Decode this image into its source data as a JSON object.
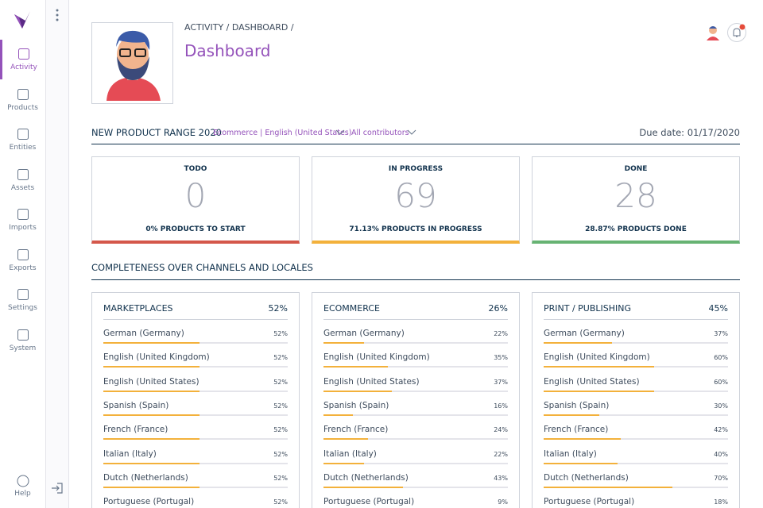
{
  "sidebar": {
    "items": [
      "Activity",
      "Products",
      "Entities",
      "Assets",
      "Imports",
      "Exports",
      "Settings",
      "System"
    ],
    "help": "Help"
  },
  "header": {
    "breadcrumb": "ACTIVITY / DASHBOARD /",
    "title": "Dashboard"
  },
  "project": {
    "name": "NEW PRODUCT RANGE 2020",
    "channel": "Ecommerce | English (United States)",
    "contributors": "All contributors",
    "due_date": "Due date: 01/17/2020"
  },
  "status_cards": [
    {
      "title": "TODO",
      "count": 0,
      "caption": "0% PRODUCTS TO START",
      "color": "#d4574a"
    },
    {
      "title": "IN PROGRESS",
      "count": 69,
      "caption": "71.13% PRODUCTS IN PROGRESS",
      "color": "#f3b13b"
    },
    {
      "title": "DONE",
      "count": 28,
      "caption": "28.87% PRODUCTS DONE",
      "color": "#67b373"
    }
  ],
  "completeness": {
    "title": "COMPLETENESS OVER CHANNELS AND LOCALES",
    "bar_color": "#f3b13b",
    "channels": [
      {
        "name": "MARKETPLACES",
        "total": "52%",
        "locales": [
          {
            "name": "German (Germany)",
            "value": 52,
            "label": "52%"
          },
          {
            "name": "English (United Kingdom)",
            "value": 52,
            "label": "52%"
          },
          {
            "name": "English (United States)",
            "value": 52,
            "label": "52%"
          },
          {
            "name": "Spanish (Spain)",
            "value": 52,
            "label": "52%"
          },
          {
            "name": "French (France)",
            "value": 52,
            "label": "52%"
          },
          {
            "name": "Italian (Italy)",
            "value": 52,
            "label": "52%"
          },
          {
            "name": "Dutch (Netherlands)",
            "value": 52,
            "label": "52%"
          },
          {
            "name": "Portuguese (Portugal)",
            "value": 52,
            "label": "52%"
          }
        ]
      },
      {
        "name": "ECOMMERCE",
        "total": "26%",
        "locales": [
          {
            "name": "German (Germany)",
            "value": 22,
            "label": "22%"
          },
          {
            "name": "English (United Kingdom)",
            "value": 35,
            "label": "35%"
          },
          {
            "name": "English (United States)",
            "value": 37,
            "label": "37%"
          },
          {
            "name": "Spanish (Spain)",
            "value": 16,
            "label": "16%"
          },
          {
            "name": "French (France)",
            "value": 24,
            "label": "24%"
          },
          {
            "name": "Italian (Italy)",
            "value": 22,
            "label": "22%"
          },
          {
            "name": "Dutch (Netherlands)",
            "value": 43,
            "label": "43%"
          },
          {
            "name": "Portuguese (Portugal)",
            "value": 9,
            "label": "9%"
          }
        ]
      },
      {
        "name": "PRINT / PUBLISHING",
        "total": "45%",
        "locales": [
          {
            "name": "German (Germany)",
            "value": 37,
            "label": "37%"
          },
          {
            "name": "English (United Kingdom)",
            "value": 60,
            "label": "60%"
          },
          {
            "name": "English (United States)",
            "value": 60,
            "label": "60%"
          },
          {
            "name": "Spanish (Spain)",
            "value": 30,
            "label": "30%"
          },
          {
            "name": "French (France)",
            "value": 42,
            "label": "42%"
          },
          {
            "name": "Italian (Italy)",
            "value": 40,
            "label": "40%"
          },
          {
            "name": "Dutch (Netherlands)",
            "value": 70,
            "label": "70%"
          },
          {
            "name": "Portuguese (Portugal)",
            "value": 18,
            "label": "18%"
          }
        ]
      }
    ]
  }
}
